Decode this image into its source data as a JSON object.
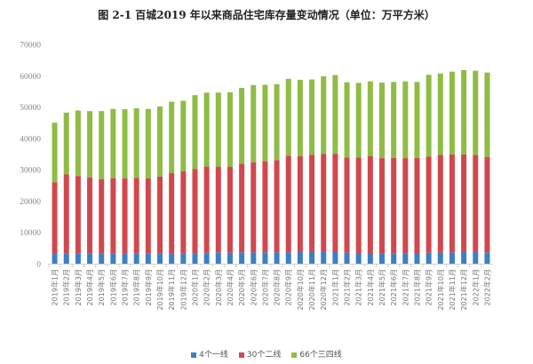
{
  "chart_data": {
    "type": "bar",
    "stacked": true,
    "title": "图 2-1 百城2019 年以来商品住宅库存量变动情况（单位：万平方米）",
    "ylim": [
      0,
      70000
    ],
    "yticks": [
      0,
      10000,
      20000,
      30000,
      40000,
      50000,
      60000,
      70000
    ],
    "grid": false,
    "legend_position": "bottom",
    "categories": [
      "2019年1月",
      "2019年2月",
      "2019年3月",
      "2019年4月",
      "2019年5月",
      "2019年6月",
      "2019年7月",
      "2019年8月",
      "2019年9月",
      "2019年10月",
      "2019年11月",
      "2019年12月",
      "2020年1月",
      "2020年2月",
      "2020年3月",
      "2020年4月",
      "2020年5月",
      "2020年6月",
      "2020年7月",
      "2020年8月",
      "2020年9月",
      "2020年10月",
      "2020年11月",
      "2020年12月",
      "2021年1月",
      "2021年2月",
      "2021年3月",
      "2021年4月",
      "2021年5月",
      "2021年6月",
      "2021年7月",
      "2021年8月",
      "2021年9月",
      "2021年10月",
      "2021年11月",
      "2021年12月",
      "2022年1月",
      "2022年2月"
    ],
    "series": [
      {
        "name": "4个一线",
        "color": "#3c7fc4",
        "values": [
          3100,
          3300,
          3300,
          3300,
          3200,
          3300,
          3200,
          3200,
          3200,
          3200,
          3300,
          3300,
          3300,
          3500,
          3600,
          3500,
          3600,
          3600,
          3600,
          3600,
          3600,
          3700,
          3700,
          3800,
          3700,
          3500,
          3400,
          3400,
          3300,
          3300,
          3300,
          3400,
          3500,
          3500,
          3600,
          3700,
          3700,
          3600
        ]
      },
      {
        "name": "30个二线",
        "color": "#d0484e",
        "values": [
          22900,
          25200,
          24700,
          24200,
          23800,
          24000,
          24000,
          24200,
          24000,
          24600,
          25700,
          26200,
          26900,
          27500,
          27400,
          27400,
          28300,
          28800,
          29100,
          29400,
          30900,
          30600,
          31100,
          31200,
          31300,
          30400,
          30500,
          30900,
          30400,
          30500,
          30400,
          30400,
          30700,
          31200,
          31300,
          31200,
          31000,
          30500
        ]
      },
      {
        "name": "66个三四线",
        "color": "#8fbc45",
        "values": [
          19000,
          19700,
          20900,
          21200,
          21700,
          22100,
          22100,
          22200,
          22200,
          22400,
          22700,
          22500,
          23600,
          23600,
          23600,
          23800,
          24200,
          24600,
          24400,
          24300,
          24500,
          24400,
          24000,
          24800,
          25200,
          24000,
          23800,
          23900,
          24100,
          24200,
          24500,
          24200,
          26100,
          26000,
          26400,
          26900,
          26900,
          26900
        ]
      }
    ]
  }
}
